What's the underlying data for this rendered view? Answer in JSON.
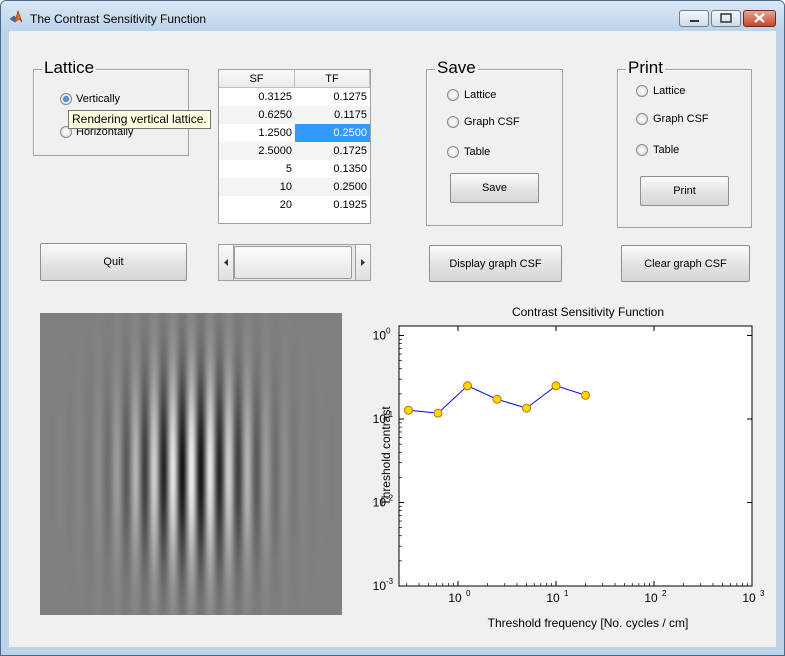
{
  "window": {
    "title": "The Contrast Sensitivity Function"
  },
  "lattice": {
    "title": "Lattice",
    "options": [
      {
        "label": "Vertically",
        "checked": true
      },
      {
        "label": "Horizontally",
        "checked": false
      }
    ],
    "tooltip": "Rendering vertical lattice."
  },
  "table": {
    "headers": [
      "SF",
      "TF"
    ],
    "rows": [
      {
        "sf": "0.3125",
        "tf": "0.1275"
      },
      {
        "sf": "0.6250",
        "tf": "0.1175"
      },
      {
        "sf": "1.2500",
        "tf": "0.2500",
        "selected": "tf"
      },
      {
        "sf": "2.5000",
        "tf": "0.1725"
      },
      {
        "sf": "5",
        "tf": "0.1350"
      },
      {
        "sf": "10",
        "tf": "0.2500"
      },
      {
        "sf": "20",
        "tf": "0.1925"
      }
    ]
  },
  "save": {
    "title": "Save",
    "options": [
      {
        "label": "Lattice"
      },
      {
        "label": "Graph CSF"
      },
      {
        "label": "Table"
      }
    ],
    "button": "Save"
  },
  "print": {
    "title": "Print",
    "options": [
      {
        "label": "Lattice"
      },
      {
        "label": "Graph CSF"
      },
      {
        "label": "Table"
      }
    ],
    "button": "Print"
  },
  "buttons": {
    "quit": "Quit",
    "display_graph": "Display graph CSF",
    "clear_graph": "Clear graph CSF"
  },
  "colors": {
    "marker_fill": "#ffd700",
    "marker_edge": "#c07000",
    "line": "#0000ff",
    "selection": "#3399ff",
    "tooltip_bg": "#ffffe1"
  },
  "chart_data": {
    "type": "line",
    "title": "Contrast Sensitivity Function",
    "xlabel": "Threshold frequency [No. cycles / cm]",
    "ylabel": "Threshold contrast",
    "xscale": "log",
    "yscale": "log",
    "xlim": [
      0.25,
      1000
    ],
    "ylim": [
      0.001,
      1.3
    ],
    "xticks": [
      1,
      10,
      100,
      1000
    ],
    "xtick_labels": [
      "10^0",
      "10^1",
      "10^2",
      "10^3"
    ],
    "yticks": [
      0.001,
      0.01,
      0.1,
      1
    ],
    "ytick_labels": [
      "10^-3",
      "10^-2",
      "10^-1",
      "10^0"
    ],
    "grid": false,
    "series": [
      {
        "x": [
          0.3125,
          0.625,
          1.25,
          2.5,
          5,
          10,
          20
        ],
        "y": [
          0.1275,
          0.1175,
          0.25,
          0.1725,
          0.135,
          0.25,
          0.1925
        ]
      }
    ]
  }
}
